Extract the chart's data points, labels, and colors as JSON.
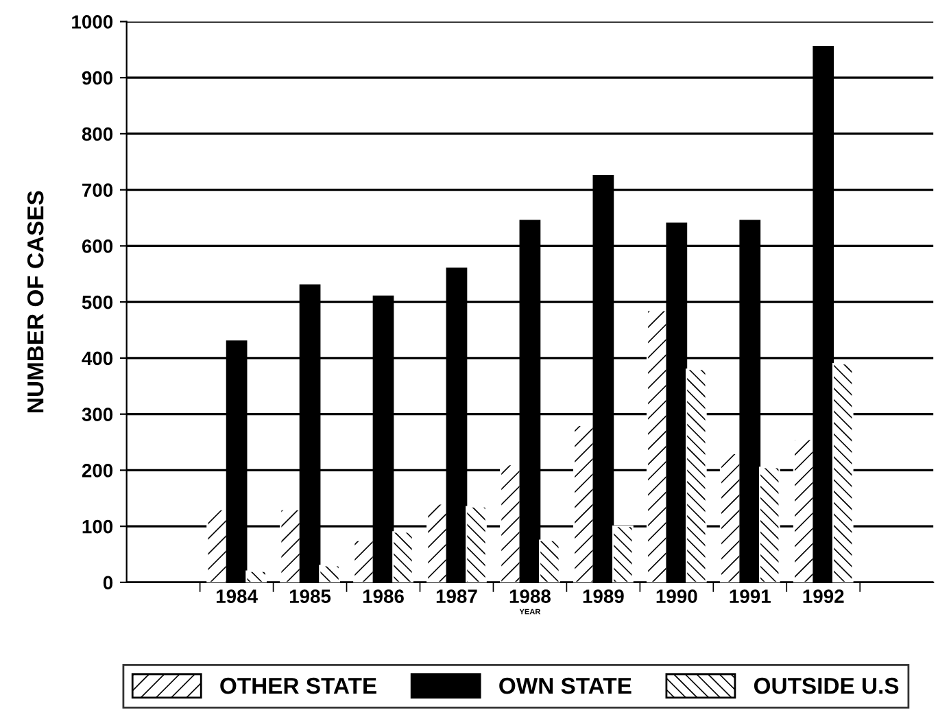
{
  "chart_data": {
    "type": "bar",
    "xlabel": "YEAR",
    "ylabel": "NUMBER OF CASES",
    "categories": [
      null,
      "1984",
      "1985",
      "1986",
      "1987",
      "1988",
      "1989",
      "1990",
      "1991",
      "1992",
      null
    ],
    "series": [
      {
        "name": "OTHER STATE",
        "color": "#ffffff",
        "values": [
          null,
          130,
          130,
          75,
          140,
          210,
          280,
          485,
          230,
          255,
          null
        ]
      },
      {
        "name": "OWN STATE",
        "color": "#000000",
        "values": [
          null,
          430,
          530,
          510,
          560,
          645,
          725,
          640,
          645,
          955,
          null
        ]
      },
      {
        "name": "OUTSIDE U.S",
        "color": "#ffffff",
        "values": [
          null,
          20,
          30,
          90,
          135,
          75,
          100,
          380,
          205,
          390,
          null
        ]
      }
    ],
    "ylim": [
      0,
      1000
    ],
    "yticks": [
      0,
      100,
      200,
      300,
      400,
      500,
      600,
      700,
      800,
      900,
      1000
    ],
    "grid": "y",
    "legend": "bottom"
  }
}
